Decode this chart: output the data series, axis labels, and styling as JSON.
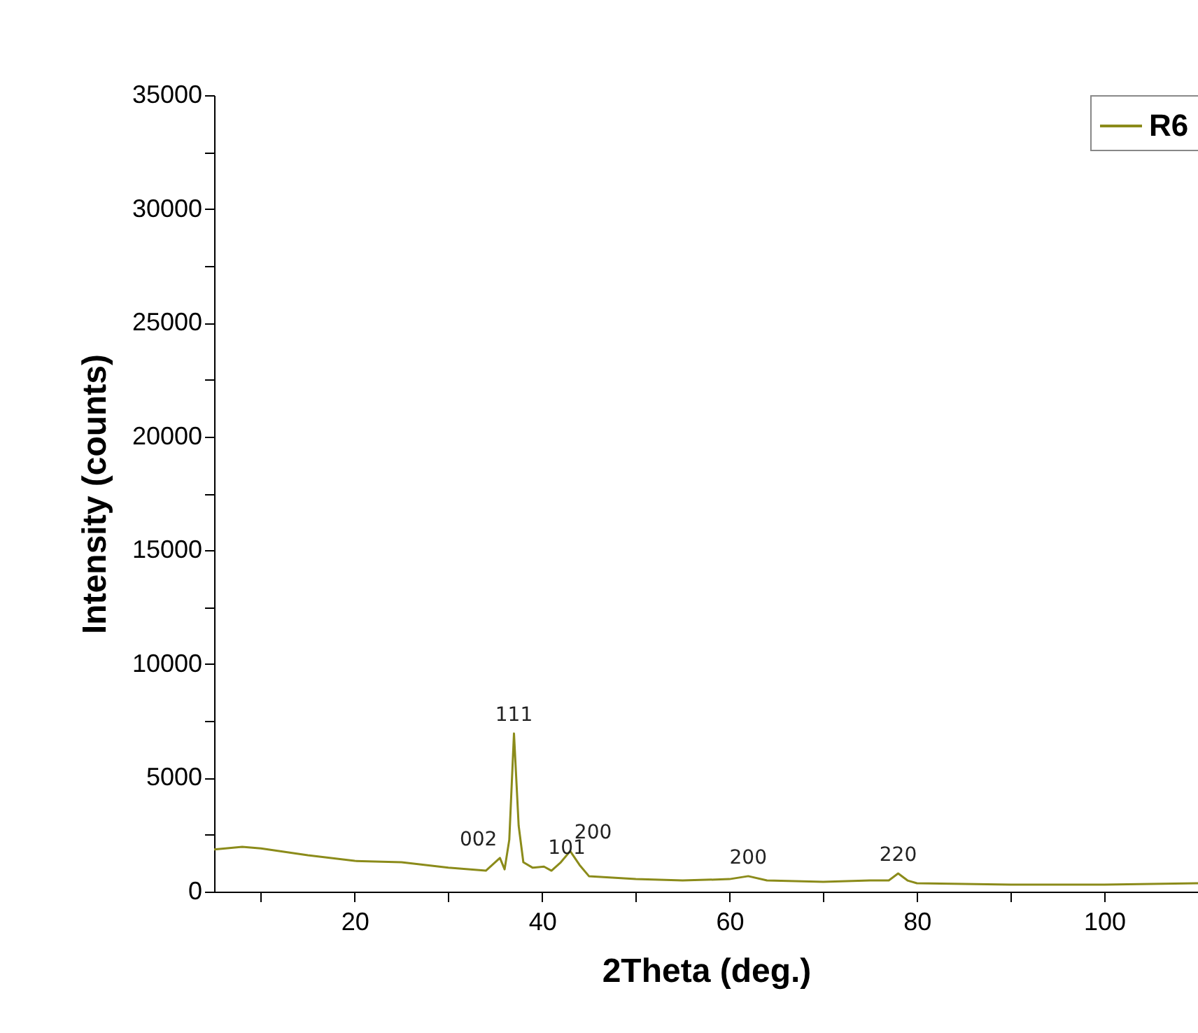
{
  "chart_data": {
    "type": "line",
    "xlabel": "2Theta (deg.)",
    "ylabel": "Intensity (counts)",
    "xlim": [
      5,
      110
    ],
    "xticks": [
      {
        "value": 10,
        "label": null
      },
      20,
      {
        "value": 30,
        "label": null
      },
      40,
      {
        "value": 50,
        "label": null
      },
      60,
      {
        "value": 70,
        "label": null
      },
      80,
      {
        "value": 90,
        "label": null
      },
      100
    ],
    "ylim": [
      0,
      35000
    ],
    "yticks": [
      0,
      {
        "value": 2500,
        "label": null
      },
      5000,
      {
        "value": 7500,
        "label": null
      },
      10000,
      {
        "value": 12500,
        "label": null
      },
      15000,
      {
        "value": 17500,
        "label": null
      },
      20000,
      {
        "value": 22500,
        "label": null
      },
      25000,
      {
        "value": 27500,
        "label": null
      },
      30000,
      {
        "value": 32500,
        "label": null
      },
      35000
    ],
    "grid": false,
    "legend": "top right",
    "marker": "none",
    "line_style": "solid",
    "series": [
      {
        "name": "R6",
        "color": "#8b8b1a",
        "x": [
          5,
          8,
          10,
          15,
          20,
          25,
          30,
          34,
          35.5,
          36,
          36.5,
          37,
          37.5,
          38,
          39,
          40.2,
          41,
          42,
          43,
          44,
          45,
          50,
          55,
          60,
          62,
          64,
          70,
          75,
          77,
          78,
          79,
          80,
          90,
          100,
          110
        ],
        "values": [
          1850,
          1970,
          1900,
          1600,
          1350,
          1290,
          1050,
          920,
          1480,
          980,
          2280,
          6950,
          2900,
          1290,
          1050,
          1100,
          920,
          1290,
          1780,
          1170,
          680,
          550,
          490,
          550,
          680,
          490,
          430,
          490,
          490,
          800,
          490,
          370,
          310,
          310,
          370
        ]
      }
    ],
    "annotations": [
      {
        "text": "002",
        "x": 35.5,
        "y": 1480
      },
      {
        "text": "111",
        "x": 37,
        "y": 6950
      },
      {
        "text": "101",
        "x": 40.2,
        "y": 1100
      },
      {
        "text": "200",
        "x": 43,
        "y": 1780
      },
      {
        "text": "200",
        "x": 62,
        "y": 680
      },
      {
        "text": "220",
        "x": 78,
        "y": 800
      }
    ]
  }
}
